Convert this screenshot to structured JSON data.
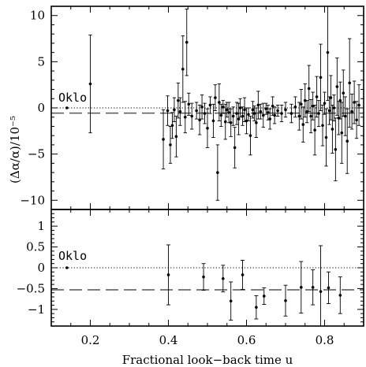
{
  "chart_data": [
    {
      "type": "scatter",
      "panel": "top",
      "xlabel": "",
      "ylabel": "(Δα/α)/10⁻⁵",
      "xlim": [
        0.1,
        0.9
      ],
      "ylim": [
        -11,
        11
      ],
      "x_ticks": [
        0.2,
        0.4,
        0.6,
        0.8
      ],
      "y_ticks": [
        -10,
        -5,
        0,
        5,
        10
      ],
      "y_tick_labels": [
        "−10",
        "−5",
        "0",
        "5",
        "10"
      ],
      "reference_lines": [
        {
          "style": "dotted",
          "y": 0
        },
        {
          "style": "dashed",
          "y": -0.57
        }
      ],
      "annotation": {
        "text": "Oklo",
        "x": 0.13,
        "y": 0.45
      },
      "series": [
        {
          "points": [
            {
              "x": 0.14,
              "y": 0.0,
              "err": 0.0
            },
            {
              "x": 0.2,
              "y": 2.6,
              "err": 5.3
            },
            {
              "x": 0.387,
              "y": -3.4,
              "err": 3.2
            },
            {
              "x": 0.398,
              "y": -0.3,
              "err": 1.6
            },
            {
              "x": 0.405,
              "y": -4.0,
              "err": 2.0
            },
            {
              "x": 0.41,
              "y": -1.9,
              "err": 1.4
            },
            {
              "x": 0.415,
              "y": -0.2,
              "err": 1.3
            },
            {
              "x": 0.42,
              "y": -3.1,
              "err": 2.2
            },
            {
              "x": 0.425,
              "y": 0.8,
              "err": 1.9
            },
            {
              "x": 0.43,
              "y": -0.4,
              "err": 1.5
            },
            {
              "x": 0.437,
              "y": 4.2,
              "err": 3.6
            },
            {
              "x": 0.443,
              "y": -1.0,
              "err": 1.7
            },
            {
              "x": 0.447,
              "y": 7.1,
              "err": 3.6
            },
            {
              "x": 0.452,
              "y": 0.4,
              "err": 1.2
            },
            {
              "x": 0.46,
              "y": -0.9,
              "err": 1.4
            },
            {
              "x": 0.472,
              "y": -0.3,
              "err": 0.9
            },
            {
              "x": 0.48,
              "y": -1.3,
              "err": 1.6
            },
            {
              "x": 0.486,
              "y": 0.1,
              "err": 1.3
            },
            {
              "x": 0.493,
              "y": -0.6,
              "err": 1.1
            },
            {
              "x": 0.5,
              "y": -2.2,
              "err": 2.1
            },
            {
              "x": 0.507,
              "y": 0.3,
              "err": 0.9
            },
            {
              "x": 0.515,
              "y": -1.4,
              "err": 1.8
            },
            {
              "x": 0.52,
              "y": 1.1,
              "err": 1.4
            },
            {
              "x": 0.526,
              "y": -7.0,
              "err": 3.0
            },
            {
              "x": 0.53,
              "y": 0.6,
              "err": 2.0
            },
            {
              "x": 0.535,
              "y": -0.8,
              "err": 1.2
            },
            {
              "x": 0.54,
              "y": 0.1,
              "err": 0.7
            },
            {
              "x": 0.546,
              "y": -1.5,
              "err": 1.9
            },
            {
              "x": 0.55,
              "y": -0.2,
              "err": 0.8
            },
            {
              "x": 0.555,
              "y": -0.5,
              "err": 1.1
            },
            {
              "x": 0.56,
              "y": -1.6,
              "err": 1.5
            },
            {
              "x": 0.566,
              "y": -0.9,
              "err": 1.0
            },
            {
              "x": 0.57,
              "y": -4.3,
              "err": 2.2
            },
            {
              "x": 0.575,
              "y": -0.6,
              "err": 1.2
            },
            {
              "x": 0.58,
              "y": -1.2,
              "err": 1.7
            },
            {
              "x": 0.584,
              "y": 0.0,
              "err": 1.0
            },
            {
              "x": 0.59,
              "y": -0.9,
              "err": 1.0
            },
            {
              "x": 0.595,
              "y": -0.2,
              "err": 1.3
            },
            {
              "x": 0.6,
              "y": -1.4,
              "err": 1.4
            },
            {
              "x": 0.605,
              "y": -0.7,
              "err": 0.7
            },
            {
              "x": 0.61,
              "y": -3.0,
              "err": 2.1
            },
            {
              "x": 0.616,
              "y": -0.2,
              "err": 0.9
            },
            {
              "x": 0.62,
              "y": -0.6,
              "err": 0.8
            },
            {
              "x": 0.625,
              "y": -1.6,
              "err": 1.6
            },
            {
              "x": 0.63,
              "y": 0.3,
              "err": 1.5
            },
            {
              "x": 0.636,
              "y": -0.4,
              "err": 0.8
            },
            {
              "x": 0.643,
              "y": -0.8,
              "err": 1.3
            },
            {
              "x": 0.65,
              "y": -0.1,
              "err": 0.6
            },
            {
              "x": 0.655,
              "y": -0.5,
              "err": 0.8
            },
            {
              "x": 0.66,
              "y": -1.2,
              "err": 1.1
            },
            {
              "x": 0.667,
              "y": 0.2,
              "err": 1.0
            },
            {
              "x": 0.672,
              "y": -0.8,
              "err": 0.9
            },
            {
              "x": 0.68,
              "y": -0.3,
              "err": 0.6
            },
            {
              "x": 0.69,
              "y": -0.6,
              "err": 0.9
            },
            {
              "x": 0.7,
              "y": -0.2,
              "err": 0.8
            },
            {
              "x": 0.715,
              "y": -0.6,
              "err": 1.0
            },
            {
              "x": 0.725,
              "y": 0.1,
              "err": 1.1
            },
            {
              "x": 0.735,
              "y": -0.9,
              "err": 1.5
            },
            {
              "x": 0.74,
              "y": 0.4,
              "err": 1.6
            },
            {
              "x": 0.745,
              "y": -1.8,
              "err": 1.9
            },
            {
              "x": 0.75,
              "y": 0.8,
              "err": 1.8
            },
            {
              "x": 0.755,
              "y": -0.4,
              "err": 1.2
            },
            {
              "x": 0.76,
              "y": 2.1,
              "err": 2.5
            },
            {
              "x": 0.765,
              "y": -0.9,
              "err": 1.8
            },
            {
              "x": 0.77,
              "y": 0.2,
              "err": 1.5
            },
            {
              "x": 0.775,
              "y": -2.4,
              "err": 2.7
            },
            {
              "x": 0.78,
              "y": 1.2,
              "err": 2.2
            },
            {
              "x": 0.785,
              "y": -0.6,
              "err": 1.4
            },
            {
              "x": 0.79,
              "y": 3.3,
              "err": 3.6
            },
            {
              "x": 0.795,
              "y": -1.9,
              "err": 2.2
            },
            {
              "x": 0.8,
              "y": 0.5,
              "err": 1.2
            },
            {
              "x": 0.804,
              "y": -3.2,
              "err": 3.1
            },
            {
              "x": 0.808,
              "y": 6.0,
              "err": 5.2
            },
            {
              "x": 0.812,
              "y": -0.3,
              "err": 1.5
            },
            {
              "x": 0.816,
              "y": 1.1,
              "err": 2.4
            },
            {
              "x": 0.82,
              "y": -2.3,
              "err": 2.6
            },
            {
              "x": 0.824,
              "y": 0.0,
              "err": 1.4
            },
            {
              "x": 0.828,
              "y": -4.5,
              "err": 3.4
            },
            {
              "x": 0.832,
              "y": 2.3,
              "err": 3.1
            },
            {
              "x": 0.836,
              "y": -1.1,
              "err": 1.8
            },
            {
              "x": 0.84,
              "y": 0.8,
              "err": 2.0
            },
            {
              "x": 0.844,
              "y": -2.7,
              "err": 3.3
            },
            {
              "x": 0.848,
              "y": 1.6,
              "err": 2.5
            },
            {
              "x": 0.853,
              "y": -0.9,
              "err": 2.1
            },
            {
              "x": 0.858,
              "y": -3.6,
              "err": 3.5
            },
            {
              "x": 0.864,
              "y": 2.7,
              "err": 4.8
            },
            {
              "x": 0.87,
              "y": -0.4,
              "err": 1.9
            },
            {
              "x": 0.876,
              "y": 0.6,
              "err": 2.3
            },
            {
              "x": 0.882,
              "y": -1.3,
              "err": 2.0
            },
            {
              "x": 0.888,
              "y": 0.3,
              "err": 2.2
            }
          ]
        }
      ]
    },
    {
      "type": "scatter",
      "panel": "bottom",
      "xlabel": "Fractional look−back time u",
      "ylabel": "",
      "xlim": [
        0.1,
        0.9
      ],
      "ylim": [
        -1.4,
        1.4
      ],
      "x_ticks": [
        0.2,
        0.4,
        0.6,
        0.8
      ],
      "x_tick_labels": [
        "0.2",
        "0.4",
        "0.6",
        "0.8"
      ],
      "y_ticks": [
        -1,
        -0.5,
        0,
        0.5,
        1
      ],
      "y_tick_labels": [
        "−1",
        "−0.5",
        "0",
        "0.5",
        "1"
      ],
      "reference_lines": [
        {
          "style": "dotted",
          "y": 0
        },
        {
          "style": "dashed",
          "y": -0.53
        }
      ],
      "annotation": {
        "text": "Oklo",
        "x": 0.13,
        "y": 0.18
      },
      "series": [
        {
          "points": [
            {
              "x": 0.14,
              "y": 0.0,
              "err": 0.0
            },
            {
              "x": 0.4,
              "y": -0.17,
              "err": 0.72
            },
            {
              "x": 0.49,
              "y": -0.22,
              "err": 0.32
            },
            {
              "x": 0.54,
              "y": -0.26,
              "err": 0.32
            },
            {
              "x": 0.56,
              "y": -0.8,
              "err": 0.46
            },
            {
              "x": 0.59,
              "y": -0.17,
              "err": 0.35
            },
            {
              "x": 0.625,
              "y": -0.95,
              "err": 0.28
            },
            {
              "x": 0.645,
              "y": -0.68,
              "err": 0.2
            },
            {
              "x": 0.7,
              "y": -0.79,
              "err": 0.37
            },
            {
              "x": 0.74,
              "y": -0.47,
              "err": 0.62
            },
            {
              "x": 0.77,
              "y": -0.47,
              "err": 0.42
            },
            {
              "x": 0.79,
              "y": -0.57,
              "err": 1.1
            },
            {
              "x": 0.81,
              "y": -0.48,
              "err": 0.38
            },
            {
              "x": 0.84,
              "y": -0.66,
              "err": 0.44
            }
          ]
        }
      ]
    }
  ]
}
